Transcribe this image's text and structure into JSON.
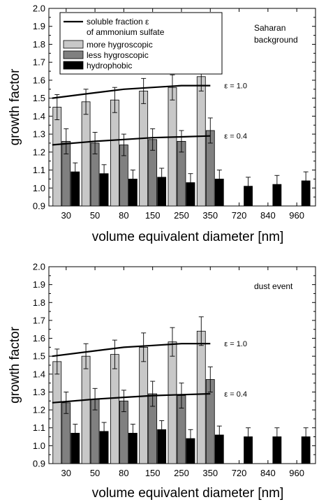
{
  "chart_data": [
    {
      "type": "bar",
      "ylabel": "growth factor",
      "xlabel": "volume equivalent diameter [nm]",
      "ylim": [
        0.9,
        2.0
      ],
      "yticks": [
        "0.9",
        "1.0",
        "1.1",
        "1.2",
        "1.3",
        "1.4",
        "1.5",
        "1.6",
        "1.7",
        "1.8",
        "1.9",
        "2.0"
      ],
      "categories": [
        "30",
        "50",
        "80",
        "150",
        "250",
        "350",
        "720",
        "840",
        "960"
      ],
      "annotation": "Saharan\nbackground",
      "legend": {
        "placement": "top-left",
        "curve_label_line1": "soluble fraction ε",
        "curve_label_line2": "of ammonium sulfate"
      },
      "colors": {
        "more": "#c8c8c8",
        "less": "#808080",
        "hydrophobic": "#000000"
      },
      "series": [
        {
          "name": "more hygroscopic",
          "key": "more",
          "values": [
            1.45,
            1.48,
            1.49,
            1.54,
            1.56,
            1.62,
            null,
            null,
            null
          ],
          "errors": [
            0.07,
            0.07,
            0.07,
            0.07,
            0.07,
            0.08,
            null,
            null,
            null
          ]
        },
        {
          "name": "less hygroscopic",
          "key": "less",
          "values": [
            1.26,
            1.25,
            1.24,
            1.27,
            1.26,
            1.32,
            null,
            null,
            null
          ],
          "errors": [
            0.07,
            0.06,
            0.06,
            0.06,
            0.06,
            0.07,
            null,
            null,
            null
          ]
        },
        {
          "name": "hydrophobic",
          "key": "hydrophobic",
          "values": [
            1.09,
            1.08,
            1.05,
            1.06,
            1.03,
            1.05,
            1.01,
            1.02,
            1.04
          ],
          "errors": [
            0.05,
            0.05,
            0.05,
            0.05,
            0.05,
            0.05,
            0.05,
            0.05,
            0.05
          ]
        }
      ],
      "curves": [
        {
          "label": "ε = 1.0",
          "y": [
            1.5,
            1.53,
            1.55,
            1.56,
            1.57,
            1.57
          ]
        },
        {
          "label": "ε = 0.4",
          "y": [
            1.24,
            1.26,
            1.27,
            1.28,
            1.285,
            1.29
          ]
        }
      ]
    },
    {
      "type": "bar",
      "ylabel": "growth factor",
      "xlabel": "volume equivalent diameter [nm]",
      "ylim": [
        0.9,
        2.0
      ],
      "yticks": [
        "0.9",
        "1.0",
        "1.1",
        "1.2",
        "1.3",
        "1.4",
        "1.5",
        "1.6",
        "1.7",
        "1.8",
        "1.9",
        "2.0"
      ],
      "categories": [
        "30",
        "50",
        "80",
        "150",
        "250",
        "350",
        "720",
        "840",
        "960"
      ],
      "annotation": "dust event",
      "legend": null,
      "colors": {
        "more": "#c8c8c8",
        "less": "#808080",
        "hydrophobic": "#000000"
      },
      "series": [
        {
          "name": "more hygroscopic",
          "key": "more",
          "values": [
            1.47,
            1.5,
            1.51,
            1.55,
            1.58,
            1.64,
            null,
            null,
            null
          ],
          "errors": [
            0.07,
            0.07,
            0.08,
            0.08,
            0.08,
            0.08,
            null,
            null,
            null
          ]
        },
        {
          "name": "less hygroscopic",
          "key": "less",
          "values": [
            1.24,
            1.26,
            1.25,
            1.29,
            1.28,
            1.37,
            null,
            null,
            null
          ],
          "errors": [
            0.06,
            0.06,
            0.06,
            0.07,
            0.07,
            0.07,
            null,
            null,
            null
          ]
        },
        {
          "name": "hydrophobic",
          "key": "hydrophobic",
          "values": [
            1.07,
            1.08,
            1.07,
            1.09,
            1.04,
            1.06,
            1.05,
            1.05,
            1.05
          ],
          "errors": [
            0.05,
            0.05,
            0.05,
            0.05,
            0.05,
            0.05,
            0.05,
            0.05,
            0.05
          ]
        }
      ],
      "curves": [
        {
          "label": "ε = 1.0",
          "y": [
            1.5,
            1.53,
            1.55,
            1.56,
            1.57,
            1.57
          ]
        },
        {
          "label": "ε = 0.4",
          "y": [
            1.24,
            1.26,
            1.27,
            1.28,
            1.285,
            1.29
          ]
        }
      ]
    }
  ]
}
